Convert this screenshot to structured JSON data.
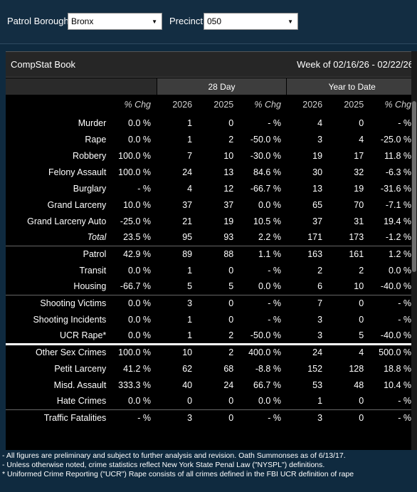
{
  "filters": {
    "borough_label": "Patrol Borough:",
    "borough_value": "Bronx",
    "precinct_label": "Precinct:",
    "precinct_value": "050",
    "caret_icon": "▼"
  },
  "panel": {
    "title": "CompStat Book",
    "week": "Week of 02/16/26 - 02/22/26"
  },
  "table": {
    "group_headers": [
      "28 Day",
      "Year to Date"
    ],
    "column_headers": [
      "% Chg",
      "2026",
      "2025",
      "% Chg",
      "2026",
      "2025",
      "% Chg"
    ],
    "rows": [
      {
        "name": "Murder",
        "cells": [
          "0.0 %",
          "1",
          "0",
          "- %",
          "4",
          "0",
          "- %"
        ],
        "hl": []
      },
      {
        "name": "Rape",
        "cells": [
          "0.0 %",
          "1",
          "2",
          "-50.0 %",
          "3",
          "4",
          "-25.0 %"
        ],
        "hl": []
      },
      {
        "name": "Robbery",
        "cells": [
          "100.0 %",
          "7",
          "10",
          "-30.0 %",
          "19",
          "17",
          "11.8 %"
        ],
        "hl": [
          0,
          6
        ]
      },
      {
        "name": "Felony Assault",
        "cells": [
          "100.0 %",
          "24",
          "13",
          "84.6 %",
          "30",
          "32",
          "-6.3 %"
        ],
        "hl": [
          0,
          3
        ]
      },
      {
        "name": "Burglary",
        "cells": [
          "- %",
          "4",
          "12",
          "-66.7 %",
          "13",
          "19",
          "-31.6 %"
        ],
        "hl": []
      },
      {
        "name": "Grand Larceny",
        "cells": [
          "10.0 %",
          "37",
          "37",
          "0.0 %",
          "65",
          "70",
          "-7.1 %"
        ],
        "hl": [
          0
        ]
      },
      {
        "name": "Grand Larceny Auto",
        "cells": [
          "-25.0 %",
          "21",
          "19",
          "10.5 %",
          "37",
          "31",
          "19.4 %"
        ],
        "hl": [
          3,
          6
        ]
      },
      {
        "name": "Total",
        "cells": [
          "23.5 %",
          "95",
          "93",
          "2.2 %",
          "171",
          "173",
          "-1.2 %"
        ],
        "hl": [
          0,
          3
        ],
        "italic": true
      },
      {
        "name": "Patrol",
        "cells": [
          "42.9 %",
          "89",
          "88",
          "1.1 %",
          "163",
          "161",
          "1.2 %"
        ],
        "hl": [
          0,
          3,
          6
        ],
        "group_start": true
      },
      {
        "name": "Transit",
        "cells": [
          "0.0 %",
          "1",
          "0",
          "- %",
          "2",
          "2",
          "0.0 %"
        ],
        "hl": []
      },
      {
        "name": "Housing",
        "cells": [
          "-66.7 %",
          "5",
          "5",
          "0.0 %",
          "6",
          "10",
          "-40.0 %"
        ],
        "hl": []
      },
      {
        "name": "Shooting Victims",
        "cells": [
          "0.0 %",
          "3",
          "0",
          "- %",
          "7",
          "0",
          "- %"
        ],
        "hl": [],
        "group_start": true
      },
      {
        "name": "Shooting Incidents",
        "cells": [
          "0.0 %",
          "1",
          "0",
          "- %",
          "3",
          "0",
          "- %"
        ],
        "hl": []
      },
      {
        "name": "UCR Rape*",
        "cells": [
          "0.0 %",
          "1",
          "2",
          "-50.0 %",
          "3",
          "5",
          "-40.0 %"
        ],
        "hl": []
      },
      {
        "name": "Other Sex Crimes",
        "cells": [
          "100.0 %",
          "10",
          "2",
          "400.0 %",
          "24",
          "4",
          "500.0 %"
        ],
        "hl": [
          0,
          3,
          6
        ],
        "group_start": true,
        "thick": true
      },
      {
        "name": "Petit Larceny",
        "cells": [
          "41.2 %",
          "62",
          "68",
          "-8.8 %",
          "152",
          "128",
          "18.8 %"
        ],
        "hl": [
          0,
          6
        ]
      },
      {
        "name": "Misd. Assault",
        "cells": [
          "333.3 %",
          "40",
          "24",
          "66.7 %",
          "53",
          "48",
          "10.4 %"
        ],
        "hl": [
          0,
          3,
          6
        ]
      },
      {
        "name": "Hate Crimes",
        "cells": [
          "0.0 %",
          "0",
          "0",
          "0.0 %",
          "1",
          "0",
          "- %"
        ],
        "hl": []
      },
      {
        "name": "Traffic Fatalities",
        "cells": [
          "- %",
          "3",
          "0",
          "- %",
          "3",
          "0",
          "- %"
        ],
        "hl": [],
        "group_start": true
      }
    ]
  },
  "footnotes": [
    "- All figures are preliminary and subject to further analysis and revision. Oath Summonses as of 6/13/17.",
    "- Unless otherwise noted, crime statistics reflect New York State Penal Law (\"NYSPL\") definitions.",
    "* Uniformed Crime Reporting (\"UCR\") Rape consists of all crimes defined in the FBI UCR definition of rape"
  ],
  "colors": {
    "highlight": "#ffff33",
    "panel_bg": "#000000",
    "page_bg": "#0f2a3f"
  }
}
